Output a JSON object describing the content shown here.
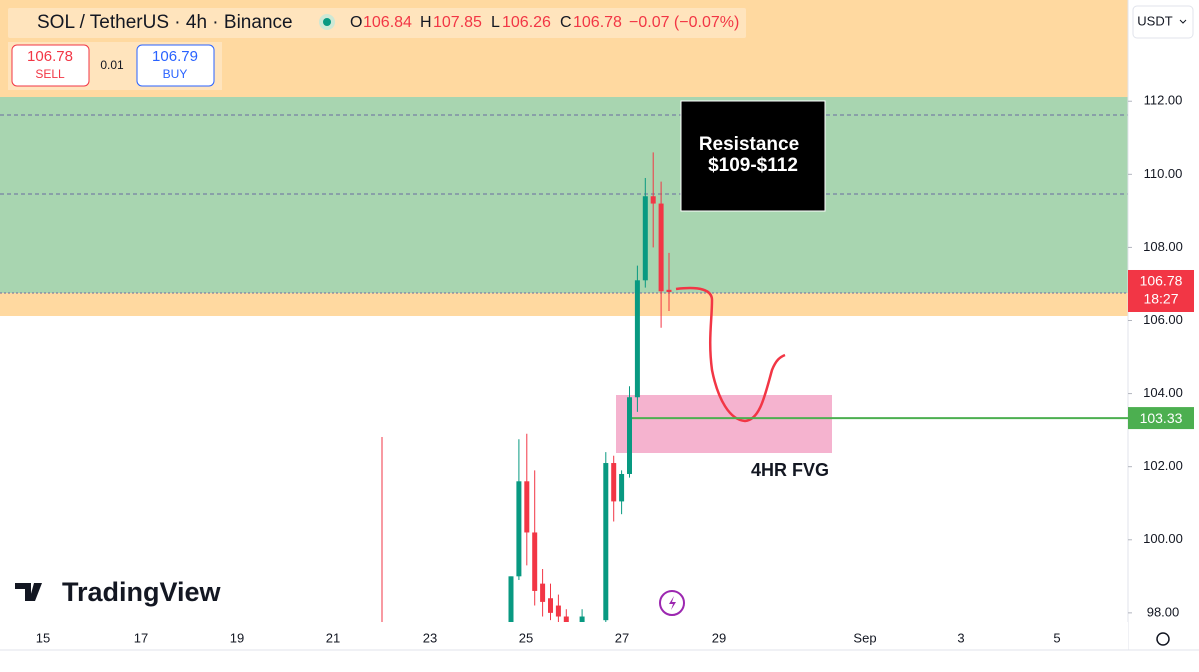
{
  "header": {
    "symbol": "SOL / TetherUS · 4h · Binance",
    "o_label": "O",
    "o": "106.84",
    "h_label": "H",
    "h": "107.85",
    "l_label": "L",
    "l": "106.26",
    "c_label": "C",
    "c": "106.78",
    "change": "−0.07 (−0.07%)",
    "sell_price": "106.78",
    "sell": "SELL",
    "spread": "0.01",
    "buy_price": "106.79",
    "buy": "BUY",
    "currency": "USDT",
    "logo": "TradingView"
  },
  "chart_data": {
    "type": "candlestick",
    "ylim": [
      97.75,
      114.77
    ],
    "yticks": [
      {
        "value": 112,
        "label": "112.00"
      },
      {
        "value": 110,
        "label": "110.00"
      },
      {
        "value": 108,
        "label": "108.00"
      },
      {
        "value": 106,
        "label": "106.00"
      },
      {
        "value": 104,
        "label": "104.00"
      },
      {
        "value": 102,
        "label": "102.00"
      },
      {
        "value": 100,
        "label": "100.00"
      },
      {
        "value": 98,
        "label": "98.00"
      }
    ],
    "x_labels": [
      "15",
      "17",
      "19",
      "21",
      "23",
      "25",
      "27",
      "29",
      "Sep",
      "3",
      "5"
    ],
    "open": [
      97.6,
      99.0,
      101.6,
      100.2,
      98.8,
      98.4,
      98.2,
      97.9,
      null,
      97.6,
      null,
      null,
      97.8,
      102.1,
      101.05,
      101.8,
      103.9,
      107.1,
      109.4,
      109.2,
      106.84
    ],
    "high": [
      99.0,
      102.75,
      102.9,
      101.9,
      99.2,
      98.8,
      98.5,
      98.1,
      null,
      98.1,
      null,
      null,
      102.4,
      102.3,
      101.9,
      104.2,
      107.5,
      109.9,
      110.6,
      109.8,
      107.85
    ],
    "low": [
      97.5,
      98.9,
      99.3,
      98.2,
      97.9,
      97.8,
      97.7,
      97.5,
      null,
      97.5,
      null,
      null,
      97.7,
      100.5,
      100.7,
      101.7,
      103.5,
      106.9,
      108.0,
      105.8,
      106.26
    ],
    "close": [
      99.0,
      101.6,
      100.2,
      98.6,
      98.3,
      98.0,
      97.9,
      97.6,
      null,
      97.9,
      null,
      null,
      102.1,
      101.05,
      101.8,
      103.9,
      107.1,
      109.4,
      109.2,
      106.8,
      106.78
    ],
    "up_color": "#089981",
    "down_color": "#f23645",
    "last_price": {
      "value": 106.78,
      "label": "106.78",
      "countdown": "18:27"
    },
    "level": {
      "value": 103.33,
      "label": "103.33",
      "color": "#4caf50"
    },
    "annotations": {
      "resistance_1": "Resistance",
      "resistance_2": "$109-$112",
      "fvg": "4HR FVG"
    }
  }
}
